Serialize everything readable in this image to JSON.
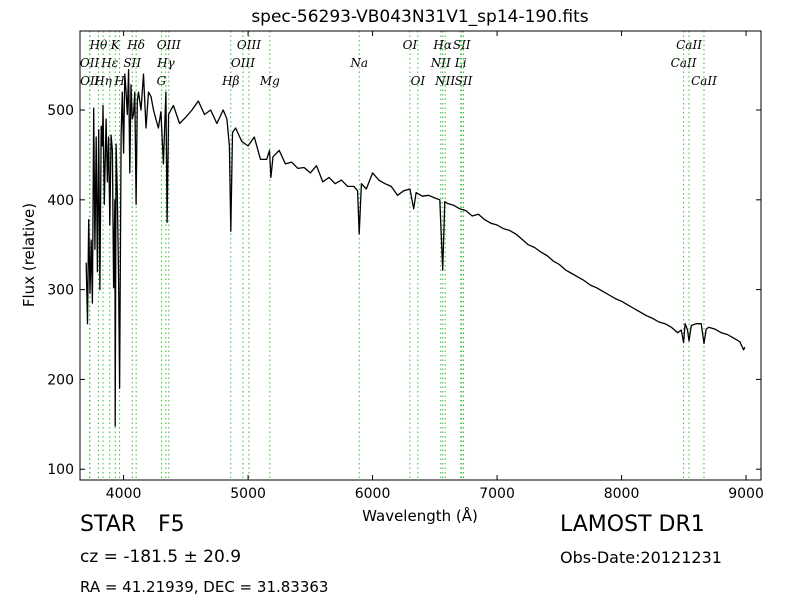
{
  "chart_data": {
    "type": "line",
    "title": "spec-56293-VB043N31V1_sp14-190.fits",
    "xlabel": "Wavelength (Å)",
    "ylabel": "Flux (relative)",
    "xlim": [
      3650,
      9120
    ],
    "ylim": [
      88,
      588
    ],
    "xticks": [
      4000,
      5000,
      6000,
      7000,
      8000,
      9000
    ],
    "yticks": [
      100,
      200,
      300,
      400,
      500
    ],
    "grid": false,
    "series": [
      {
        "color": "#000000",
        "x": [
          3700,
          3710,
          3720,
          3730,
          3740,
          3750,
          3760,
          3770,
          3780,
          3790,
          3800,
          3810,
          3820,
          3830,
          3835,
          3845,
          3860,
          3870,
          3880,
          3889,
          3900,
          3910,
          3920,
          3930,
          3933,
          3940,
          3950,
          3960,
          3968,
          3980,
          3990,
          4000,
          4010,
          4020,
          4030,
          4040,
          4050,
          4060,
          4070,
          4080,
          4090,
          4101,
          4110,
          4120,
          4140,
          4160,
          4180,
          4200,
          4220,
          4240,
          4260,
          4280,
          4300,
          4320,
          4340,
          4350,
          4362,
          4380,
          4400,
          4450,
          4500,
          4550,
          4600,
          4650,
          4700,
          4750,
          4800,
          4830,
          4850,
          4861,
          4875,
          4900,
          4950,
          5000,
          5050,
          5100,
          5150,
          5172,
          5183,
          5200,
          5250,
          5300,
          5350,
          5400,
          5450,
          5500,
          5550,
          5600,
          5650,
          5700,
          5750,
          5800,
          5850,
          5880,
          5893,
          5910,
          5950,
          6000,
          6050,
          6100,
          6150,
          6200,
          6250,
          6300,
          6330,
          6350,
          6400,
          6450,
          6500,
          6540,
          6563,
          6580,
          6600,
          6650,
          6700,
          6750,
          6800,
          6850,
          6900,
          6950,
          7000,
          7050,
          7100,
          7150,
          7200,
          7250,
          7300,
          7350,
          7400,
          7450,
          7500,
          7550,
          7600,
          7650,
          7700,
          7750,
          7800,
          7850,
          7900,
          7950,
          8000,
          8050,
          8100,
          8150,
          8200,
          8250,
          8300,
          8350,
          8400,
          8450,
          8480,
          8498,
          8510,
          8530,
          8542,
          8560,
          8600,
          8640,
          8662,
          8680,
          8700,
          8750,
          8800,
          8850,
          8900,
          8950,
          8980,
          8990
        ],
        "values": [
          330,
          262,
          378,
          296,
          355,
          285,
          502,
          345,
          470,
          320,
          478,
          300,
          482,
          460,
          505,
          395,
          490,
          420,
          470,
          372,
          472,
          455,
          302,
          400,
          148,
          462,
          408,
          310,
          190,
          470,
          520,
          452,
          540,
          520,
          495,
          545,
          430,
          528,
          490,
          495,
          520,
          395,
          510,
          520,
          500,
          540,
          480,
          520,
          515,
          500,
          490,
          480,
          498,
          440,
          520,
          375,
          495,
          500,
          505,
          485,
          492,
          500,
          510,
          495,
          500,
          485,
          500,
          490,
          460,
          365,
          475,
          480,
          465,
          460,
          470,
          445,
          445,
          455,
          425,
          448,
          455,
          440,
          442,
          435,
          436,
          430,
          438,
          420,
          425,
          418,
          422,
          415,
          415,
          410,
          362,
          418,
          412,
          430,
          422,
          418,
          415,
          405,
          410,
          412,
          390,
          408,
          404,
          405,
          402,
          400,
          322,
          398,
          396,
          394,
          390,
          388,
          382,
          384,
          378,
          374,
          372,
          368,
          366,
          362,
          356,
          350,
          347,
          342,
          338,
          332,
          328,
          322,
          318,
          314,
          310,
          305,
          302,
          298,
          294,
          290,
          287,
          283,
          279,
          275,
          271,
          268,
          264,
          262,
          258,
          252,
          255,
          241,
          262,
          255,
          243,
          260,
          262,
          262,
          240,
          256,
          258,
          256,
          252,
          250,
          246,
          242,
          233,
          236
        ]
      }
    ],
    "line_markers": [
      {
        "label": "Hθ",
        "x": 3798,
        "row": 0
      },
      {
        "label": "OII",
        "x": 3727,
        "row": 1
      },
      {
        "label": "OII",
        "x": 3729,
        "row": 2
      },
      {
        "label": "Hη",
        "x": 3835,
        "row": 2
      },
      {
        "label": "Hε",
        "x": 3889,
        "row": 1
      },
      {
        "label": "K",
        "x": 3933,
        "row": 0
      },
      {
        "label": "H",
        "x": 3968,
        "row": 2
      },
      {
        "label": "SII",
        "x": 4070,
        "row": 1
      },
      {
        "label": "Hδ",
        "x": 4101,
        "row": 0
      },
      {
        "label": "G",
        "x": 4304,
        "row": 2
      },
      {
        "label": "Hγ",
        "x": 4340,
        "row": 1
      },
      {
        "label": "OIII",
        "x": 4363,
        "row": 0
      },
      {
        "label": "Hβ",
        "x": 4861,
        "row": 2
      },
      {
        "label": "OIII",
        "x": 4959,
        "row": 1
      },
      {
        "label": "OIII",
        "x": 5007,
        "row": 0
      },
      {
        "label": "Mg",
        "x": 5175,
        "row": 2
      },
      {
        "label": "Na",
        "x": 5893,
        "row": 1
      },
      {
        "label": "OI",
        "x": 6300,
        "row": 0
      },
      {
        "label": "OI",
        "x": 6364,
        "row": 2
      },
      {
        "label": "NII",
        "x": 6548,
        "row": 1
      },
      {
        "label": "Hα",
        "x": 6563,
        "row": 0
      },
      {
        "label": "NII",
        "x": 6583,
        "row": 2
      },
      {
        "label": "Li",
        "x": 6708,
        "row": 1
      },
      {
        "label": "SII",
        "x": 6716,
        "row": 0
      },
      {
        "label": "SII",
        "x": 6731,
        "row": 2
      },
      {
        "label": "CaII",
        "x": 8498,
        "row": 1
      },
      {
        "label": "CaII",
        "x": 8542,
        "row": 0
      },
      {
        "label": "CaII",
        "x": 8662,
        "row": 2
      }
    ],
    "marker_color": "#33bb33"
  },
  "info": {
    "class_label": "STAR",
    "subclass": "F5",
    "cz_text": "cz = -181.5  ± 20.9",
    "radec_text": "RA = 41.21939, DEC = 31.83363",
    "survey": "LAMOST DR1",
    "obs_date": "Obs-Date:20121231"
  }
}
